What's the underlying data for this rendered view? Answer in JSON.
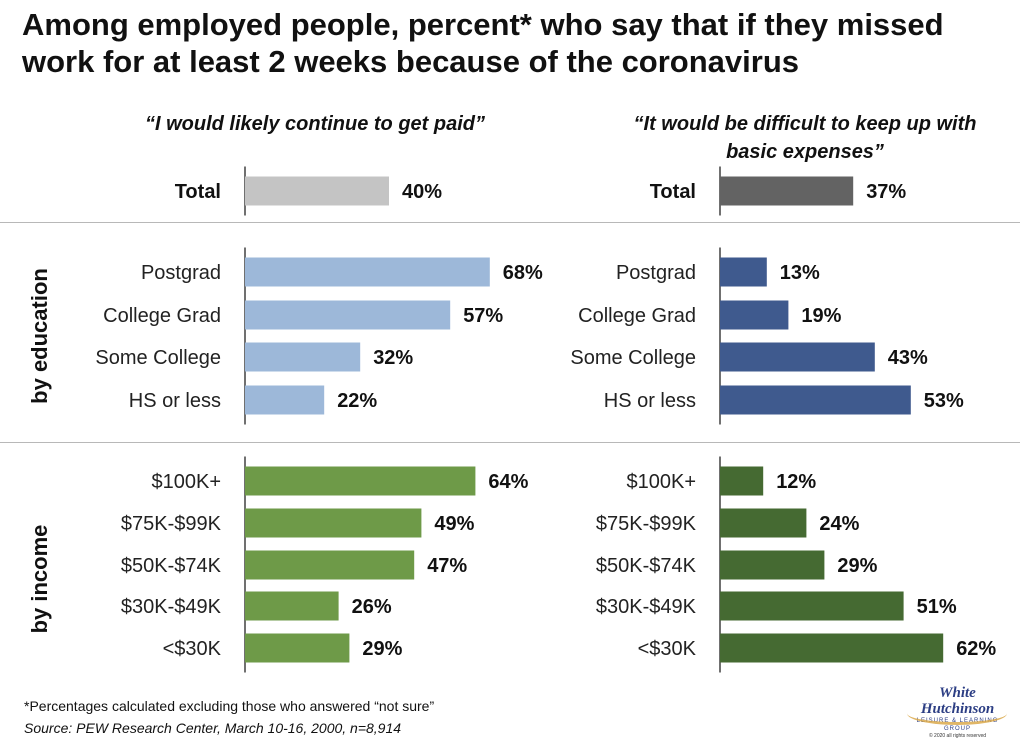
{
  "title": "Among employed people, percent* who say that if they missed work for at least 2 weeks because of the coronavirus",
  "footnote": "*Percentages calculated excluding those who answered “not sure”",
  "source": "Source: PEW Research Center, March 10-16, 2000, n=8,914",
  "sections": {
    "education": "by education",
    "income": "by income"
  },
  "logo": {
    "line1": "White",
    "line2": "Hutchinson",
    "tagline": "LEISURE & LEARNING GROUP",
    "copyright": "© 2020 all rights reserved"
  },
  "colors": {
    "total_left": "#c4c4c4",
    "total_right": "#636363",
    "education_left": "#9db8d9",
    "education_right": "#3f5a8e",
    "income_left": "#6e9a48",
    "income_right": "#456a32"
  },
  "chart_data": [
    {
      "type": "bar",
      "orientation": "horizontal",
      "title": "“I would likely continue to get paid”",
      "categories": [
        "Total",
        "Postgrad",
        "College Grad",
        "Some College",
        "HS or less",
        "$100K+",
        "$75K-$99K",
        "$50K-$74K",
        "$30K-$49K",
        "<$30K"
      ],
      "groups": [
        "Total",
        "by education",
        "by education",
        "by education",
        "by education",
        "by income",
        "by income",
        "by income",
        "by income",
        "by income"
      ],
      "values": [
        40,
        68,
        57,
        32,
        22,
        64,
        49,
        47,
        26,
        29
      ],
      "labels": [
        "40%",
        "68%",
        "57%",
        "32%",
        "22%",
        "64%",
        "49%",
        "47%",
        "26%",
        "29%"
      ],
      "xlim": [
        0,
        80
      ],
      "grid": false
    },
    {
      "type": "bar",
      "orientation": "horizontal",
      "title": "“It would be difficult to keep up with basic expenses”",
      "categories": [
        "Total",
        "Postgrad",
        "College Grad",
        "Some College",
        "HS or less",
        "$100K+",
        "$75K-$99K",
        "$50K-$74K",
        "$30K-$49K",
        "<$30K"
      ],
      "groups": [
        "Total",
        "by education",
        "by education",
        "by education",
        "by education",
        "by income",
        "by income",
        "by income",
        "by income",
        "by income"
      ],
      "values": [
        37,
        13,
        19,
        43,
        53,
        12,
        24,
        29,
        51,
        62
      ],
      "labels": [
        "37%",
        "13%",
        "19%",
        "43%",
        "53%",
        "12%",
        "24%",
        "29%",
        "51%",
        "62%"
      ],
      "xlim": [
        0,
        80
      ],
      "grid": false
    }
  ]
}
